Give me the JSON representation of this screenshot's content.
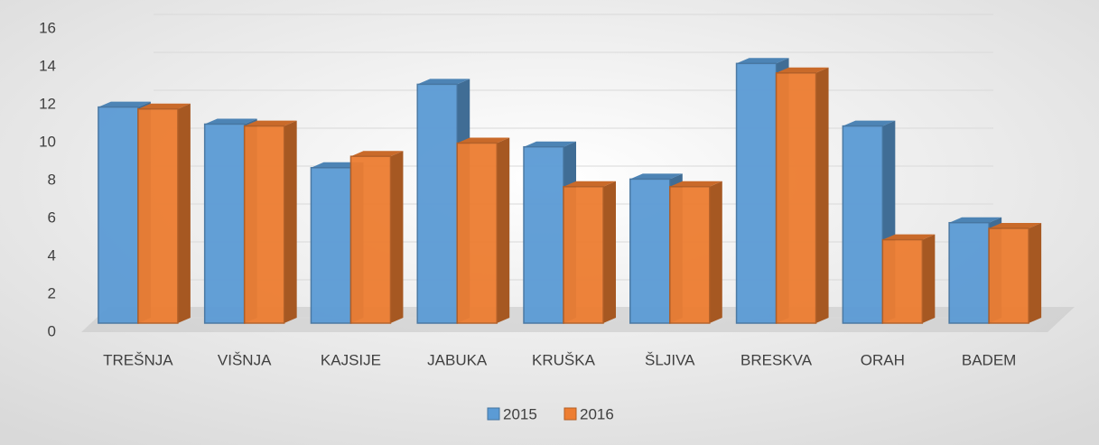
{
  "chart_data": {
    "type": "bar",
    "categories": [
      "TREŠNJA",
      "VIŠNJA",
      "KAJSIJE",
      "JABUKA",
      "KRUŠKA",
      "ŠLJIVA",
      "BRESKVA",
      "ORAH",
      "BADEM"
    ],
    "series": [
      {
        "name": "2015",
        "color": "#5b9bd5",
        "values": [
          11.4,
          10.5,
          8.2,
          12.6,
          9.3,
          7.6,
          13.7,
          10.4,
          5.3
        ]
      },
      {
        "name": "2016",
        "color": "#ed7d31",
        "values": [
          11.3,
          10.4,
          8.8,
          9.5,
          7.2,
          7.2,
          13.2,
          4.4,
          5.0
        ]
      }
    ],
    "ylim": [
      0,
      16
    ],
    "yticks": [
      0,
      2,
      4,
      6,
      8,
      10,
      12,
      14,
      16
    ],
    "grid": true,
    "legend": "bottom"
  }
}
